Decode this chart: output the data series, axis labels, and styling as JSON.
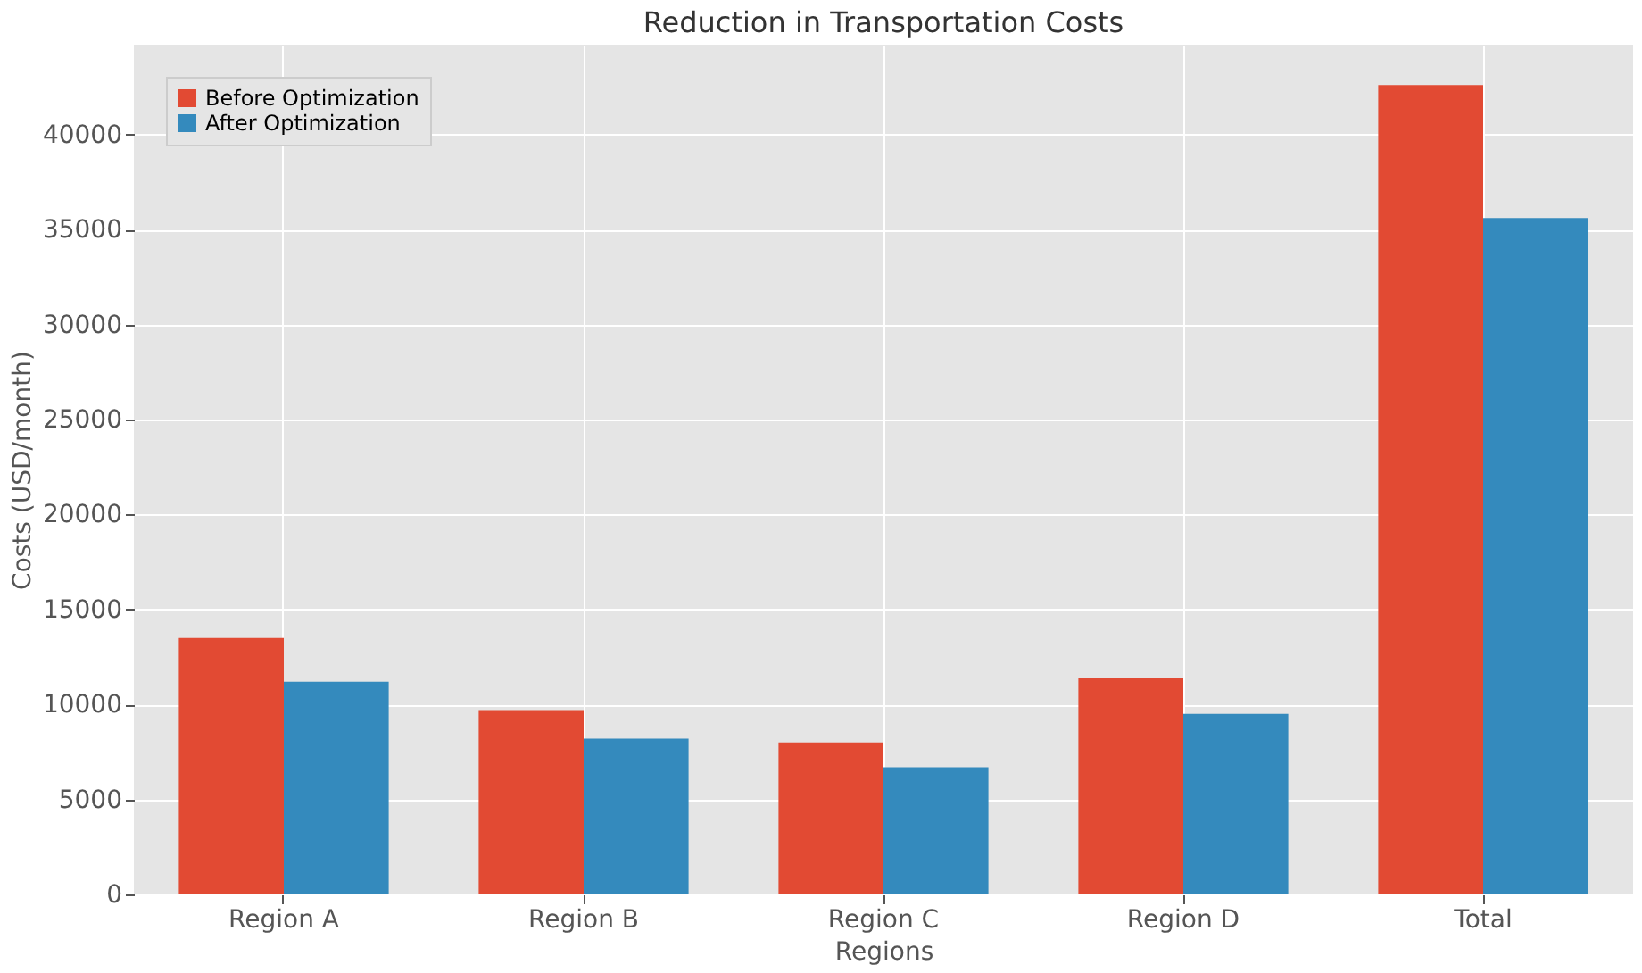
{
  "chart_data": {
    "type": "bar",
    "title": "Reduction in Transportation Costs",
    "xlabel": "Regions",
    "ylabel": "Costs (USD/month)",
    "categories": [
      "Region A",
      "Region B",
      "Region C",
      "Region D",
      "Total"
    ],
    "series": [
      {
        "name": "Before Optimization",
        "color": "#e24a33",
        "values": [
          13500,
          9700,
          8000,
          11400,
          42600
        ]
      },
      {
        "name": "After Optimization",
        "color": "#348abd",
        "values": [
          11200,
          8200,
          6700,
          9500,
          35600
        ]
      }
    ],
    "ylim": [
      0,
      44730
    ],
    "yticks": [
      0,
      5000,
      10000,
      15000,
      20000,
      25000,
      30000,
      35000,
      40000
    ],
    "grid": true,
    "legend": "top left"
  }
}
